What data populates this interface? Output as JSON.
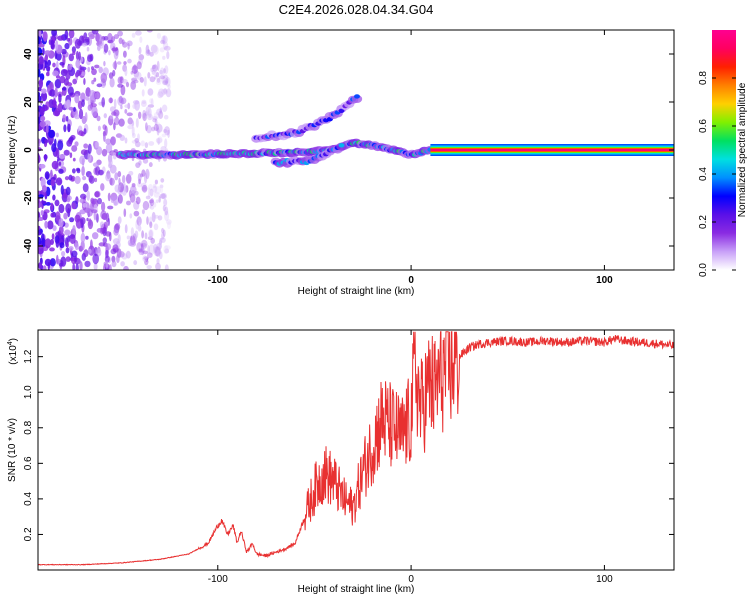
{
  "title": "C2E4.2026.028.04.34.G04",
  "chart_data": [
    {
      "type": "heatmap",
      "xlabel": "Height of straight line (km)",
      "ylabel": "Frequency (Hz)",
      "xlim": [
        -193,
        136
      ],
      "ylim": [
        -50,
        50
      ],
      "xticks": [
        -100,
        0,
        100
      ],
      "yticks": [
        -40,
        -20,
        0,
        20,
        40
      ],
      "colorbar": {
        "label": "Normalized spectral amplitude",
        "range": [
          0,
          1
        ],
        "ticks": [
          0.0,
          0.2,
          0.4,
          0.6,
          0.8
        ],
        "colors": [
          "#ffffff",
          "#c8a0f8",
          "#8a2be2",
          "#5a10e8",
          "#0000ff",
          "#0090ff",
          "#00e0e0",
          "#00e060",
          "#80f000",
          "#ffd000",
          "#ff8000",
          "#ff2000",
          "#ff0060",
          "#ff0090"
        ]
      },
      "features": [
        {
          "name": "noise",
          "x_range": [
            -193,
            -125
          ],
          "y_range": [
            -50,
            50
          ],
          "amplitude": 0.25
        },
        {
          "name": "main_line",
          "x": [
            -150,
            -120,
            -90,
            -60,
            -40,
            -30,
            -20,
            -10,
            0,
            10
          ],
          "y": [
            -2,
            -2,
            -1.5,
            -1,
            0,
            3,
            2,
            0,
            -2,
            0
          ],
          "amplitude": 0.45
        },
        {
          "name": "upper_branch",
          "x": [
            -80,
            -60,
            -45,
            -35,
            -28
          ],
          "y": [
            5,
            7,
            12,
            17,
            22
          ],
          "amplitude": 0.3
        },
        {
          "name": "lower_branch",
          "x": [
            -70,
            -55,
            -45,
            -35
          ],
          "y": [
            -5,
            -5,
            -2,
            2
          ],
          "amplitude": 0.35
        },
        {
          "name": "direct_wave",
          "x": [
            10,
            136
          ],
          "y": [
            0,
            0
          ],
          "amplitude": 0.9
        }
      ]
    },
    {
      "type": "line",
      "xlabel": "Height of straight line (km)",
      "ylabel": "SNR (10 * v/v)",
      "multiplier": "(x10^4)",
      "multiplier_base": "(x10",
      "multiplier_exp": "4",
      "multiplier_close": ")",
      "xlim": [
        -193,
        136
      ],
      "ylim": [
        0,
        1.35
      ],
      "xticks": [
        -100,
        0,
        100
      ],
      "yticks": [
        0.2,
        0.4,
        0.6,
        0.8,
        1.0,
        1.2
      ],
      "color": "#e83030",
      "series": [
        {
          "name": "SNR",
          "x": [
            -193,
            -170,
            -150,
            -130,
            -115,
            -105,
            -100,
            -98,
            -95,
            -92,
            -90,
            -88,
            -85,
            -82,
            -80,
            -75,
            -70,
            -65,
            -60,
            -55,
            -50,
            -45,
            -40,
            -35,
            -30,
            -25,
            -20,
            -15,
            -10,
            -5,
            0,
            2,
            5,
            8,
            10,
            12,
            15,
            20,
            25,
            30,
            35,
            40,
            50,
            60,
            70,
            80,
            90,
            100,
            105,
            110,
            120,
            130,
            136
          ],
          "y": [
            0.03,
            0.03,
            0.04,
            0.06,
            0.09,
            0.15,
            0.25,
            0.28,
            0.2,
            0.25,
            0.15,
            0.22,
            0.1,
            0.15,
            0.09,
            0.08,
            0.1,
            0.12,
            0.15,
            0.3,
            0.45,
            0.55,
            0.5,
            0.4,
            0.35,
            0.55,
            0.7,
            0.85,
            0.8,
            0.75,
            0.85,
            1.15,
            0.9,
            1.0,
            1.05,
            1.0,
            1.1,
            1.15,
            1.2,
            1.25,
            1.27,
            1.28,
            1.29,
            1.28,
            1.29,
            1.28,
            1.29,
            1.28,
            1.3,
            1.29,
            1.28,
            1.27,
            1.26
          ]
        }
      ]
    }
  ]
}
